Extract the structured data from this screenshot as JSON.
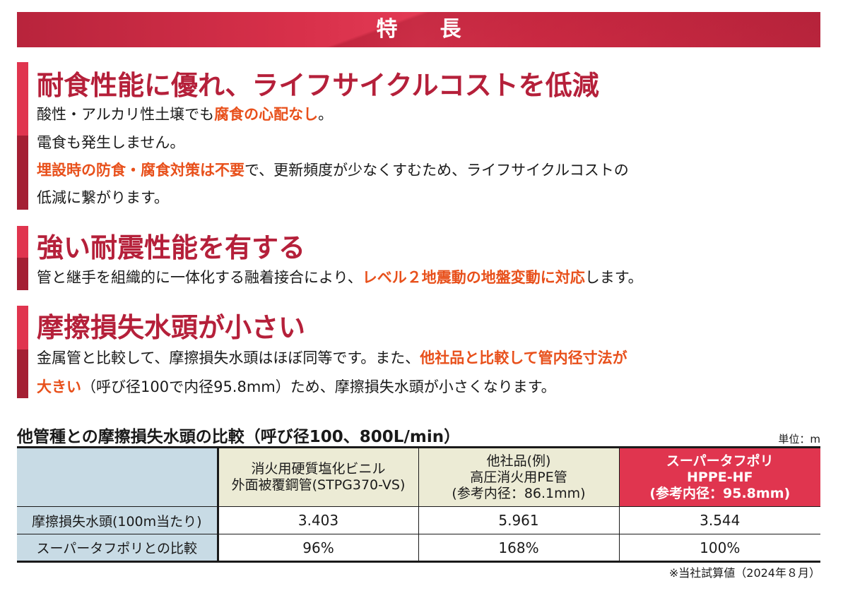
{
  "banner": {
    "title": "特長"
  },
  "sections": [
    {
      "heading": "耐食性能に優れ、ライフサイクルコストを低減",
      "lines": [
        [
          {
            "t": "酸性・アルカリ性土壌でも",
            "h": false
          },
          {
            "t": "腐食の心配なし",
            "h": true
          },
          {
            "t": "。",
            "h": false
          }
        ],
        [
          {
            "t": "電食も発生しません。",
            "h": false
          }
        ],
        [
          {
            "t": "埋設時の防食・腐食対策は不要",
            "h": true
          },
          {
            "t": "で、更新頻度が少なくすむため、ライフサイクルコストの",
            "h": false
          }
        ],
        [
          {
            "t": "低減に繋がります。",
            "h": false
          }
        ]
      ]
    },
    {
      "heading": "強い耐震性能を有する",
      "lines": [
        [
          {
            "t": "管と継手を組織的に一体化する融着接合により、",
            "h": false
          },
          {
            "t": "レベル２地震動の地盤変動に対応",
            "h": true
          },
          {
            "t": "します。",
            "h": false
          }
        ]
      ]
    },
    {
      "heading": "摩擦損失水頭が小さい",
      "lines": [
        [
          {
            "t": "金属管と比較して、摩擦損失水頭はほぼ同等です。また、",
            "h": false
          },
          {
            "t": "他社品と比較して管内径寸法が",
            "h": true
          }
        ],
        [
          {
            "t": "大きい",
            "h": true
          },
          {
            "t": "（呼び径100で内径95.8mm）ため、摩擦損失水頭が小さくなります。",
            "h": false
          }
        ]
      ]
    }
  ],
  "table": {
    "title": "他管種との摩擦損失水頭の比較（呼び径100、800L/min）",
    "unit": "単位：m",
    "columns": [
      {
        "lines": [
          "消火用硬質塩化ビニル",
          "外面被覆鋼管(STPG370-VS)"
        ]
      },
      {
        "lines": [
          "他社品(例)",
          "高圧消火用PE管",
          "(参考内径：86.1mm)"
        ]
      },
      {
        "lines": [
          "スーパータフポリ",
          "HPPE-HF",
          "(参考内径：95.8mm)"
        ]
      }
    ],
    "rows": [
      {
        "label": "摩擦損失水頭(100m当たり)",
        "values": [
          "3.403",
          "5.961",
          "3.544"
        ]
      },
      {
        "label": "スーパータフポリとの比較",
        "values": [
          "96%",
          "168%",
          "100%"
        ]
      }
    ],
    "footnote": "※当社試算値（2024年８月）"
  },
  "colors": {
    "accent_red": "#e0354f",
    "dark_red": "#b5203a",
    "highlight_orange": "#e8501b",
    "header_blue": "#c8dbe5",
    "header_beige": "#ecebd5"
  }
}
